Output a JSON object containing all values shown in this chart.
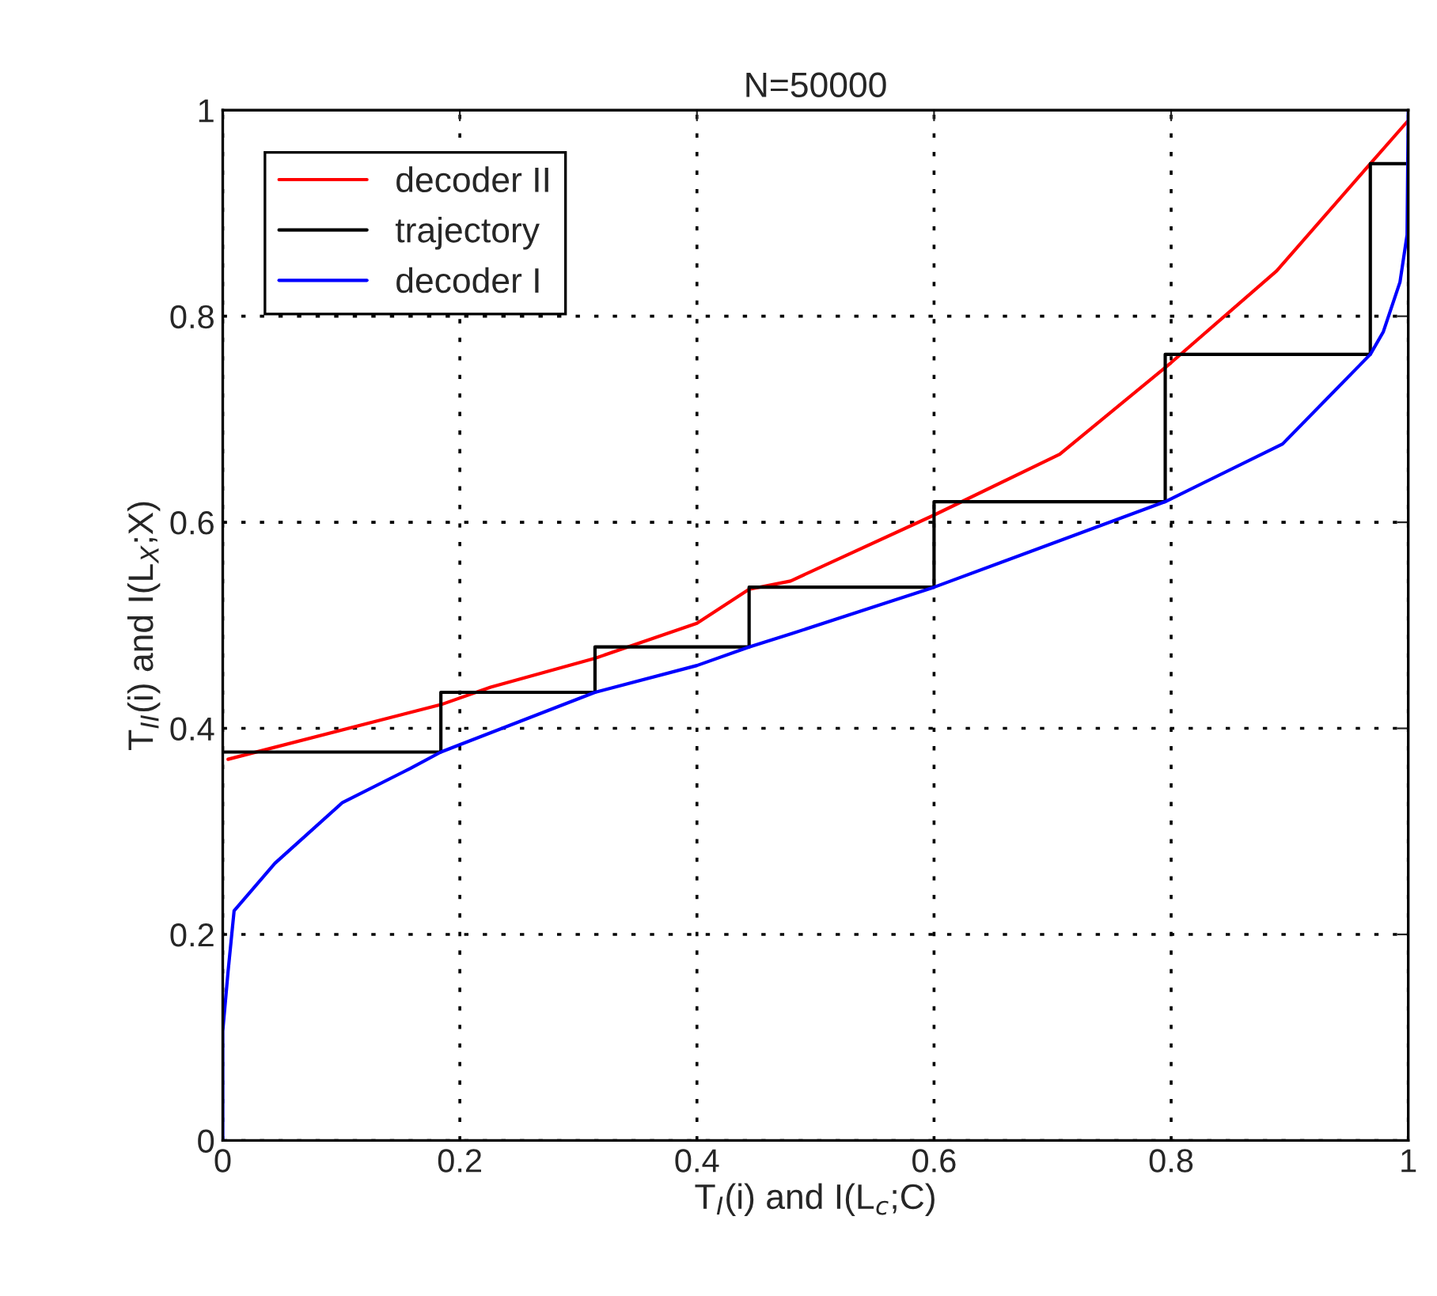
{
  "chart_data": {
    "type": "line",
    "title": "N=50000",
    "xlabel": "T$_{I}$(i) and I(L$_{c}$;C)",
    "ylabel": "T$_{II}$(i) and I(L$_{X}$;X)",
    "xlim": [
      0,
      1
    ],
    "ylim": [
      0,
      1
    ],
    "xticks": [
      0,
      0.2,
      0.4,
      0.6,
      0.8,
      1
    ],
    "yticks": [
      0,
      0.2,
      0.4,
      0.6,
      0.8,
      1
    ],
    "grid": true,
    "legend": "top left",
    "marker": "none",
    "line_style": "solid",
    "series": [
      {
        "name": "decoder II",
        "color": "#ff0000",
        "x": [
          0.0045,
          0.184,
          0.226,
          0.314,
          0.4,
          0.444,
          0.479,
          0.6,
          0.706,
          0.8,
          0.889,
          0.968,
          1.0
        ],
        "values": [
          0.37,
          0.423,
          0.44,
          0.468,
          0.502,
          0.535,
          0.543,
          0.607,
          0.666,
          0.755,
          0.844,
          0.948,
          0.99
        ]
      },
      {
        "name": "trajectory",
        "color": "#000000",
        "x": [
          0,
          0.184,
          0.184,
          0.314,
          0.314,
          0.444,
          0.444,
          0.6,
          0.6,
          0.795,
          0.795,
          0.968,
          0.968,
          1.0
        ],
        "values": [
          0.377,
          0.377,
          0.435,
          0.435,
          0.479,
          0.479,
          0.537,
          0.537,
          0.62,
          0.62,
          0.763,
          0.763,
          0.948,
          0.948
        ]
      },
      {
        "name": "decoder I",
        "color": "#0000ff",
        "x": [
          0,
          0,
          0.0045,
          0.0096,
          0.044,
          0.101,
          0.158,
          0.184,
          0.314,
          0.4,
          0.444,
          0.48,
          0.6,
          0.795,
          0.894,
          0.968,
          0.979,
          0.993,
          0.999,
          1.0
        ],
        "values": [
          0,
          0.106,
          0.164,
          0.223,
          0.269,
          0.328,
          0.361,
          0.377,
          0.435,
          0.461,
          0.479,
          0.492,
          0.537,
          0.62,
          0.676,
          0.763,
          0.785,
          0.833,
          0.879,
          1.0
        ]
      }
    ]
  }
}
